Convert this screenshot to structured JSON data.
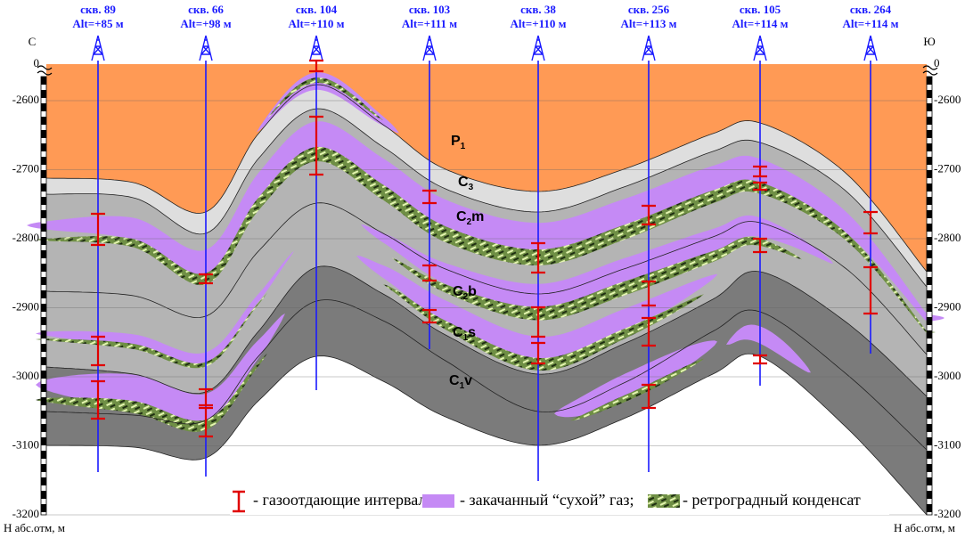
{
  "header": {
    "left_side": "С",
    "right_side": "Ю"
  },
  "wells": [
    {
      "name": "скв. 89",
      "altitude": "Alt=+85 м"
    },
    {
      "name": "скв. 66",
      "altitude": "Alt=+98  м"
    },
    {
      "name": "скв. 104",
      "altitude": "Alt=+110  м"
    },
    {
      "name": "скв. 103",
      "altitude": "Alt=+111 м"
    },
    {
      "name": "скв. 38",
      "altitude": "Alt=+110 м"
    },
    {
      "name": "скв. 256",
      "altitude": "Alt=+113 м"
    },
    {
      "name": "скв. 105",
      "altitude": "Alt=+114 м"
    },
    {
      "name": "скв. 264",
      "altitude": "Alt=+114 м"
    }
  ],
  "depth_axis": {
    "ticks": [
      0,
      -2600,
      -2700,
      -2800,
      -2900,
      -3000,
      -3100,
      -3200
    ],
    "label": "Н абс.отм, м"
  },
  "layers": [
    {
      "symbol": "P",
      "index": "1"
    },
    {
      "symbol": "C",
      "index": "3"
    },
    {
      "symbol": "C",
      "index": "2",
      "suffix": "m"
    },
    {
      "symbol": "C",
      "index": "2",
      "suffix": "b"
    },
    {
      "symbol": "C",
      "index": "1",
      "suffix": "s"
    },
    {
      "symbol": "C",
      "index": "1",
      "suffix": "v"
    }
  ],
  "legend": [
    "- газоотдающие интервалы;",
    "- закачанный “сухой” газ;",
    "- ретроградный конденсат"
  ]
}
